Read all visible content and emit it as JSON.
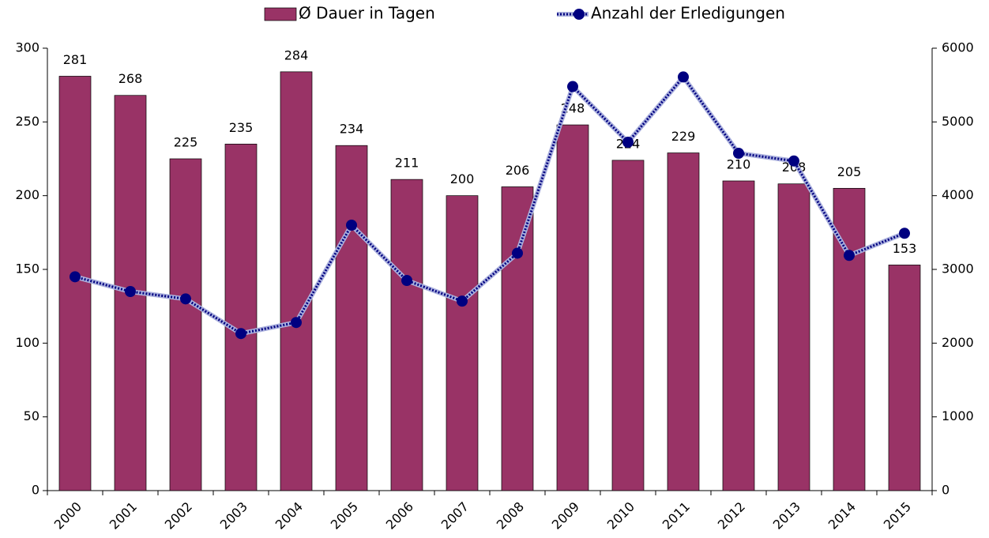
{
  "chart_data": {
    "type": "bar-line",
    "categories": [
      "2000",
      "2001",
      "2002",
      "2003",
      "2004",
      "2005",
      "2006",
      "2007",
      "2008",
      "2009",
      "2010",
      "2011",
      "2012",
      "2013",
      "2014",
      "2015"
    ],
    "series": [
      {
        "name": "Ø Dauer in Tagen",
        "type": "bar",
        "color": "#993366",
        "axis": "y",
        "values": [
          281,
          268,
          225,
          235,
          284,
          234,
          211,
          200,
          206,
          248,
          224,
          229,
          210,
          208,
          205,
          153
        ]
      },
      {
        "name": "Anzahl der Erledigungen",
        "type": "line",
        "color": "#000080",
        "axis": "y2",
        "values": [
          2900,
          2700,
          2600,
          2130,
          2280,
          3600,
          2850,
          2570,
          3220,
          5480,
          4725,
          5610,
          4575,
          4470,
          3190,
          3490
        ]
      }
    ],
    "ylim": [
      0,
      300
    ],
    "yticks": [
      0,
      50,
      100,
      150,
      200,
      250,
      300
    ],
    "y2lim": [
      0,
      6000
    ],
    "y2ticks": [
      0,
      1000,
      2000,
      3000,
      4000,
      5000,
      6000
    ],
    "legend": "top"
  }
}
